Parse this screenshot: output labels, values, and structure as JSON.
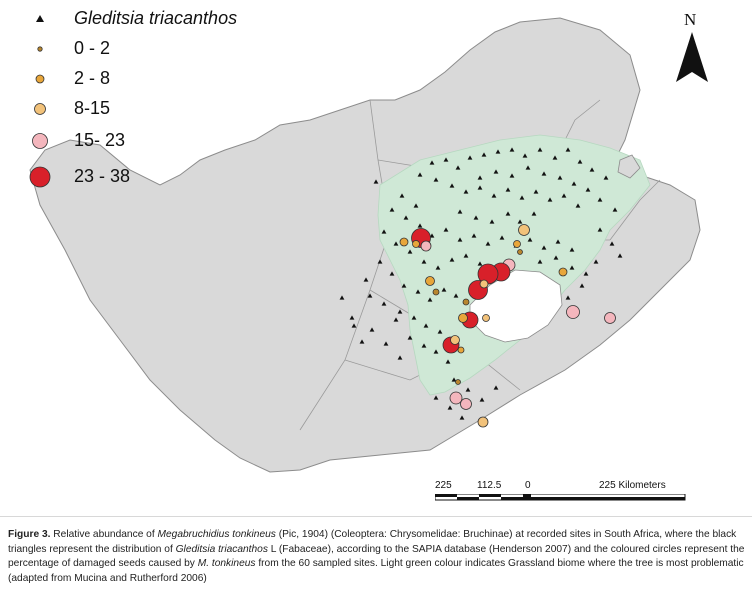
{
  "map": {
    "colors": {
      "land": "#d9d9d9",
      "border": "#8c8c8c",
      "grassland": "#cfe8d6",
      "lesotho": "#ffffff",
      "triangle": "#111111",
      "class_0_2": "#b8862e",
      "class_2_8": "#e8a63a",
      "class_8_15": "#f2c27a",
      "class_15_23": "#f4b6bd",
      "class_23_38": "#d8202a"
    },
    "legend": {
      "title": "Gleditsia triacanthos",
      "items": [
        {
          "label": "0 - 2",
          "class": "class_0_2"
        },
        {
          "label": "2 - 8",
          "class": "class_2_8"
        },
        {
          "label": "8-15",
          "class": "class_8_15"
        },
        {
          "label": "15- 23",
          "class": "class_15_23"
        },
        {
          "label": "23 - 38",
          "class": "class_23_38"
        }
      ]
    },
    "north_label": "N",
    "scale": {
      "ticks": [
        "225",
        "112.5",
        "0",
        "225 Kilometers"
      ]
    }
  },
  "caption": {
    "figure_label": "Figure 3.",
    "text_1": " Relative abundance of ",
    "species_1": "Megabruchidius tonkineus",
    "text_2": " (Pic, 1904) (Coleoptera: Chrysomelidae: Bruchinae) at recorded sites in South Africa, where the black triangles represent the distribution of ",
    "species_2": "Gleditsia triacanthos",
    "text_3": " L (Fabaceae), according to the SAPIA database (Henderson  2007) and the coloured circles represent the percentage of damaged seeds caused by ",
    "species_3": "M. tonkineus",
    "text_4": " from the 60 sampled sites. Light green colour indicates Grassland biome where the tree is most problematic (adapted from Mucina and Rutherford 2006)"
  }
}
